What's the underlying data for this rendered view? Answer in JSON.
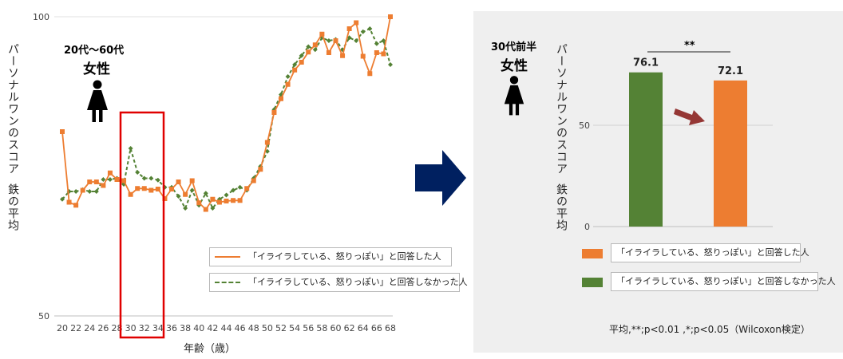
{
  "left": {
    "group_age": "20代〜60代",
    "group_sex": "女性",
    "ylabel1": "パーソナルワンのスコア",
    "ylabel2": "鉄の平均",
    "xlabel": "年齢（歳）",
    "legend": [
      "「イライラしている、怒りっぽい」と回答した人",
      "「イライラしている、怒りっぽい」と回答しなかった人"
    ]
  },
  "right": {
    "group_age": "30代前半",
    "group_sex": "女性",
    "ylabel1": "パーソナルワンのスコア",
    "ylabel2": "鉄の平均",
    "significance": "**",
    "legend": [
      "「イライラしている、怒りっぽい」と回答した人",
      "「イライラしている、怒りっぽい」と回答しなかった人"
    ],
    "footnote": "平均,**;p<0.01 ,*;p<0.05（Wilcoxon検定）"
  },
  "colors": {
    "orange": "#ed7d31",
    "green": "#548235",
    "highlight": "#e00000",
    "arrow": "#002060",
    "small_arrow": "#953735"
  },
  "icons": [
    "woman-icon",
    "right-arrow-icon",
    "down-right-arrow-icon"
  ],
  "chart_data": [
    {
      "type": "line",
      "xlabel": "年齢（歳）",
      "ylabel": "パーソナルワンのスコア　鉄の平均",
      "ylim": [
        50,
        100
      ],
      "yticks": [
        50,
        100
      ],
      "x": [
        20,
        21,
        22,
        23,
        24,
        25,
        26,
        27,
        28,
        29,
        30,
        31,
        32,
        33,
        34,
        35,
        36,
        37,
        38,
        39,
        40,
        41,
        42,
        43,
        44,
        45,
        46,
        47,
        48,
        49,
        50,
        51,
        52,
        53,
        54,
        55,
        56,
        57,
        58,
        59,
        60,
        61,
        62,
        63,
        64,
        65,
        66,
        67,
        68
      ],
      "xticks": [
        20,
        22,
        24,
        26,
        28,
        30,
        32,
        34,
        36,
        38,
        40,
        42,
        44,
        46,
        48,
        50,
        52,
        54,
        56,
        58,
        60,
        62,
        64,
        66,
        68
      ],
      "highlight_range": [
        30,
        34
      ],
      "series": [
        {
          "name": "「イライラしている、怒りっぽい」と回答した人",
          "color": "#ed7d31",
          "style": "solid",
          "values": [
            80.8,
            69.0,
            68.5,
            71.0,
            72.4,
            72.4,
            71.8,
            73.9,
            72.8,
            72.6,
            70.3,
            71.3,
            71.3,
            71.0,
            71.2,
            69.6,
            71.2,
            72.4,
            70.3,
            72.6,
            68.9,
            67.8,
            69.5,
            69.0,
            69.2,
            69.3,
            69.3,
            71.3,
            72.6,
            74.5,
            79.0,
            84.0,
            86.3,
            88.7,
            91.1,
            92.4,
            94.1,
            95.3,
            97.1,
            94.0,
            96.0,
            93.5,
            98.0,
            99.0,
            93.4,
            90.5,
            94.0,
            93.8,
            100.0
          ]
        },
        {
          "name": "「イライラしている、怒りっぽい」と回答しなかった人",
          "color": "#548235",
          "style": "dashed",
          "values": [
            69.5,
            70.8,
            70.8,
            71.1,
            70.8,
            70.8,
            72.8,
            72.8,
            73.0,
            72.0,
            78.0,
            74.0,
            73.0,
            73.0,
            72.7,
            71.5,
            71.5,
            70.0,
            68.0,
            71.0,
            68.5,
            70.5,
            68.0,
            69.5,
            70.2,
            71.0,
            71.5,
            71.0,
            73.0,
            75.0,
            77.5,
            84.5,
            87.0,
            90.0,
            92.0,
            93.5,
            95.0,
            94.5,
            96.5,
            96.0,
            96.2,
            94.5,
            96.5,
            96.0,
            97.5,
            98.0,
            95.5,
            96.0,
            92.0
          ]
        }
      ]
    },
    {
      "type": "bar",
      "ylim": [
        0,
        100
      ],
      "yticks": [
        0,
        50
      ],
      "categories": [
        "「イライラしている、怒りっぽい」と回答しなかった人",
        "「イライラしている、怒りっぽい」と回答した人"
      ],
      "values": [
        76.1,
        72.1
      ],
      "labels": [
        "76.1",
        "72.1"
      ],
      "colors": [
        "#548235",
        "#ed7d31"
      ]
    }
  ]
}
